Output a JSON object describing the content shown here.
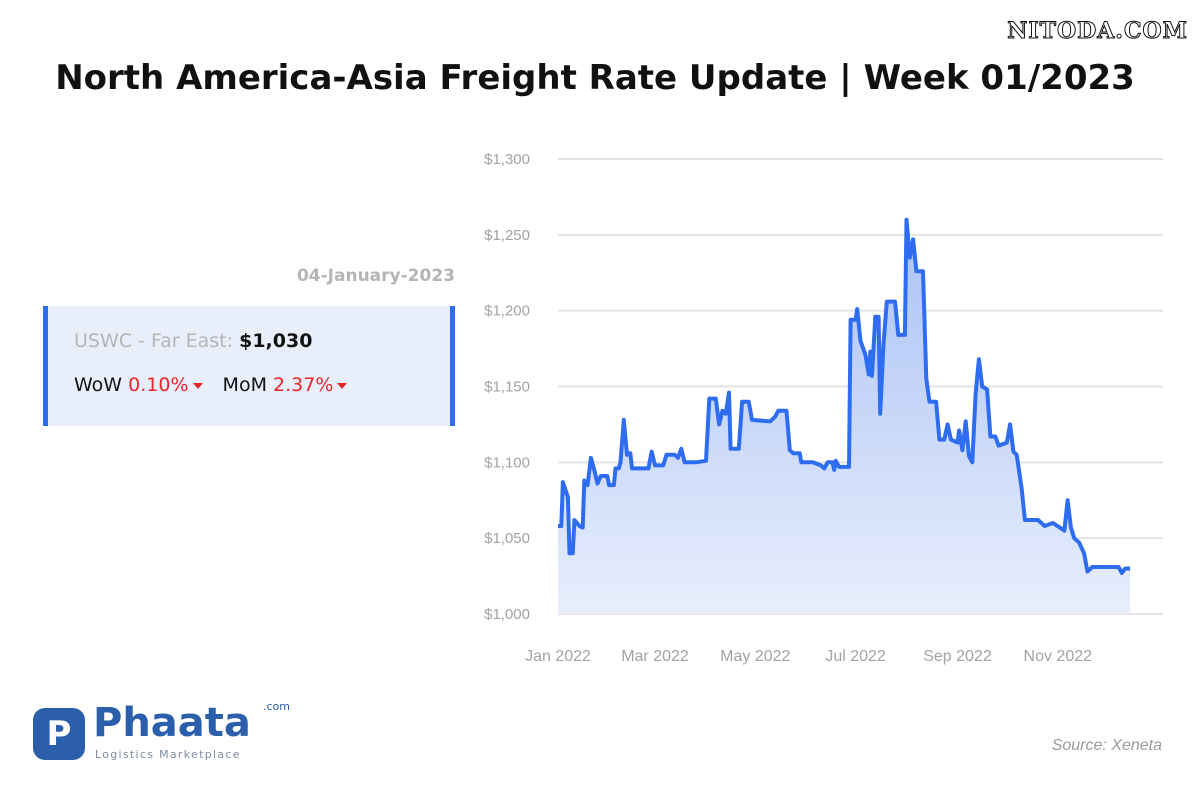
{
  "watermark": "NITODA.COM",
  "title": "North America-Asia Freight Rate Update | Week 01/2023",
  "date": "04-January-2023",
  "card": {
    "route_label": "USWC - Far East:",
    "route_value": "$1,030",
    "wow_label": "WoW",
    "wow_value": "0.10%",
    "mom_label": "MoM",
    "mom_value": "2.37%"
  },
  "logo": {
    "name": "Phaata",
    "com": ".com",
    "tagline": "Logistics Marketplace",
    "mark": "P"
  },
  "source": "Source: Xeneta",
  "colors": {
    "line": "#2f6df0",
    "area_top": "#a9c1f5",
    "area_bottom": "#e8eefc",
    "down": "#e8262a"
  },
  "chart_data": {
    "type": "area",
    "x_unit": "date",
    "yticks": [
      "$1,300",
      "$1,250",
      "$1,200",
      "$1,150",
      "$1,100",
      "$1,050",
      "$1,000"
    ],
    "ytick_values": [
      1300,
      1250,
      1200,
      1150,
      1100,
      1050,
      1000
    ],
    "ylim": [
      1000,
      1300
    ],
    "xlim": [
      "2022-01-01",
      "2023-01-04"
    ],
    "xticks": [
      "Jan 2022",
      "Mar 2022",
      "May 2022",
      "Jul 2022",
      "Sep 2022",
      "Nov 2022"
    ],
    "xtick_dates": [
      "2022-01-01",
      "2022-03-01",
      "2022-05-01",
      "2022-07-01",
      "2022-09-01",
      "2022-11-01"
    ],
    "grid": true,
    "series": [
      {
        "points": [
          [
            "2022-01-01",
            1058
          ],
          [
            "2022-01-03",
            1058
          ],
          [
            "2022-01-04",
            1087
          ],
          [
            "2022-01-07",
            1077
          ],
          [
            "2022-01-08",
            1040
          ],
          [
            "2022-01-10",
            1040
          ],
          [
            "2022-01-11",
            1062
          ],
          [
            "2022-01-14",
            1058
          ],
          [
            "2022-01-16",
            1057
          ],
          [
            "2022-01-17",
            1088
          ],
          [
            "2022-01-19",
            1085
          ],
          [
            "2022-01-21",
            1103
          ],
          [
            "2022-01-23",
            1095
          ],
          [
            "2022-01-25",
            1086
          ],
          [
            "2022-01-27",
            1091
          ],
          [
            "2022-01-31",
            1091
          ],
          [
            "2022-02-01",
            1085
          ],
          [
            "2022-02-04",
            1085
          ],
          [
            "2022-02-05",
            1096
          ],
          [
            "2022-02-07",
            1096
          ],
          [
            "2022-02-08",
            1100
          ],
          [
            "2022-02-10",
            1128
          ],
          [
            "2022-02-12",
            1105
          ],
          [
            "2022-02-14",
            1106
          ],
          [
            "2022-02-15",
            1096
          ],
          [
            "2022-02-25",
            1096
          ],
          [
            "2022-02-27",
            1107
          ],
          [
            "2022-03-01",
            1098
          ],
          [
            "2022-03-06",
            1098
          ],
          [
            "2022-03-08",
            1105
          ],
          [
            "2022-03-13",
            1105
          ],
          [
            "2022-03-15",
            1103
          ],
          [
            "2022-03-17",
            1109
          ],
          [
            "2022-03-19",
            1100
          ],
          [
            "2022-03-26",
            1100
          ],
          [
            "2022-04-01",
            1101
          ],
          [
            "2022-04-03",
            1142
          ],
          [
            "2022-04-07",
            1142
          ],
          [
            "2022-04-09",
            1125
          ],
          [
            "2022-04-11",
            1134
          ],
          [
            "2022-04-13",
            1132
          ],
          [
            "2022-04-15",
            1146
          ],
          [
            "2022-04-16",
            1109
          ],
          [
            "2022-04-21",
            1109
          ],
          [
            "2022-04-23",
            1140
          ],
          [
            "2022-04-27",
            1140
          ],
          [
            "2022-04-29",
            1128
          ],
          [
            "2022-05-10",
            1127
          ],
          [
            "2022-05-13",
            1130
          ],
          [
            "2022-05-15",
            1134
          ],
          [
            "2022-05-20",
            1134
          ],
          [
            "2022-05-22",
            1108
          ],
          [
            "2022-05-24",
            1106
          ],
          [
            "2022-05-28",
            1106
          ],
          [
            "2022-05-29",
            1100
          ],
          [
            "2022-06-05",
            1100
          ],
          [
            "2022-06-10",
            1098
          ],
          [
            "2022-06-12",
            1096
          ],
          [
            "2022-06-14",
            1100
          ],
          [
            "2022-06-17",
            1100
          ],
          [
            "2022-06-18",
            1095
          ],
          [
            "2022-06-19",
            1101
          ],
          [
            "2022-06-21",
            1097
          ],
          [
            "2022-06-27",
            1097
          ],
          [
            "2022-06-28",
            1194
          ],
          [
            "2022-07-01",
            1194
          ],
          [
            "2022-07-02",
            1201
          ],
          [
            "2022-07-04",
            1180
          ],
          [
            "2022-07-07",
            1171
          ],
          [
            "2022-07-09",
            1158
          ],
          [
            "2022-07-10",
            1173
          ],
          [
            "2022-07-11",
            1157
          ],
          [
            "2022-07-13",
            1196
          ],
          [
            "2022-07-15",
            1196
          ],
          [
            "2022-07-16",
            1132
          ],
          [
            "2022-07-18",
            1178
          ],
          [
            "2022-07-20",
            1206
          ],
          [
            "2022-07-25",
            1206
          ],
          [
            "2022-07-27",
            1184
          ],
          [
            "2022-07-31",
            1184
          ],
          [
            "2022-08-01",
            1260
          ],
          [
            "2022-08-03",
            1235
          ],
          [
            "2022-08-05",
            1247
          ],
          [
            "2022-08-07",
            1226
          ],
          [
            "2022-08-11",
            1226
          ],
          [
            "2022-08-13",
            1155
          ],
          [
            "2022-08-15",
            1140
          ],
          [
            "2022-08-19",
            1140
          ],
          [
            "2022-08-21",
            1115
          ],
          [
            "2022-08-24",
            1115
          ],
          [
            "2022-08-26",
            1125
          ],
          [
            "2022-08-28",
            1115
          ],
          [
            "2022-09-01",
            1113
          ],
          [
            "2022-09-02",
            1121
          ],
          [
            "2022-09-04",
            1108
          ],
          [
            "2022-09-06",
            1127
          ],
          [
            "2022-09-08",
            1104
          ],
          [
            "2022-09-10",
            1100
          ],
          [
            "2022-09-12",
            1145
          ],
          [
            "2022-09-14",
            1168
          ],
          [
            "2022-09-16",
            1150
          ],
          [
            "2022-09-19",
            1148
          ],
          [
            "2022-09-21",
            1117
          ],
          [
            "2022-09-24",
            1117
          ],
          [
            "2022-09-26",
            1111
          ],
          [
            "2022-10-01",
            1113
          ],
          [
            "2022-10-03",
            1125
          ],
          [
            "2022-10-05",
            1107
          ],
          [
            "2022-10-07",
            1105
          ],
          [
            "2022-10-10",
            1083
          ],
          [
            "2022-10-12",
            1062
          ],
          [
            "2022-10-20",
            1062
          ],
          [
            "2022-10-24",
            1058
          ],
          [
            "2022-10-29",
            1060
          ],
          [
            "2022-11-05",
            1055
          ],
          [
            "2022-11-07",
            1075
          ],
          [
            "2022-11-09",
            1057
          ],
          [
            "2022-11-11",
            1050
          ],
          [
            "2022-11-14",
            1047
          ],
          [
            "2022-11-17",
            1040
          ],
          [
            "2022-11-19",
            1028
          ],
          [
            "2022-11-22",
            1031
          ],
          [
            "2022-11-26",
            1031
          ],
          [
            "2022-12-05",
            1031
          ],
          [
            "2022-12-08",
            1031
          ],
          [
            "2022-12-10",
            1027
          ],
          [
            "2022-12-12",
            1030
          ],
          [
            "2022-12-15",
            1030
          ]
        ]
      }
    ]
  }
}
